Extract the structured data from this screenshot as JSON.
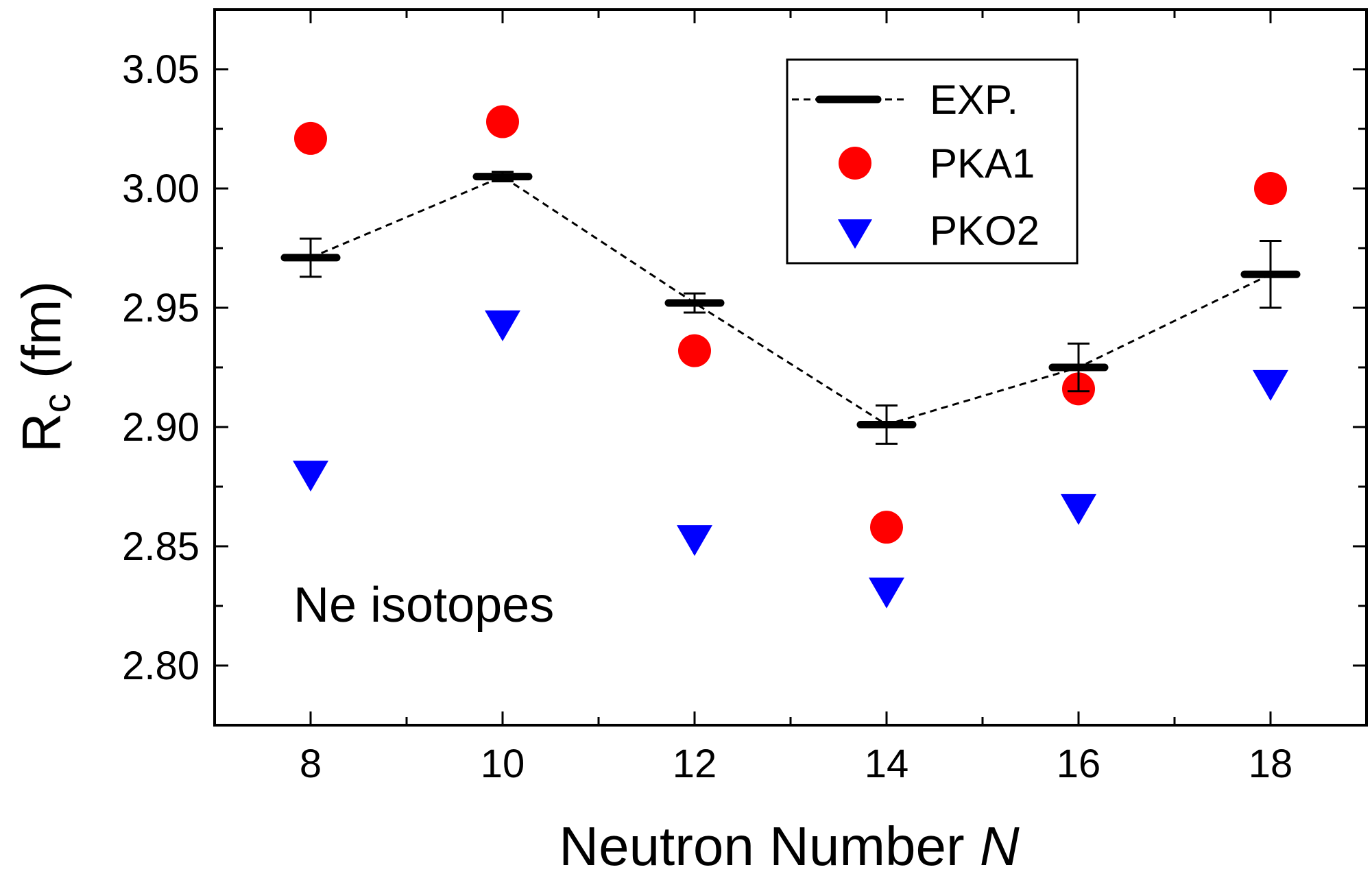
{
  "chart_data": {
    "type": "scatter",
    "title": "",
    "xlabel": "Neutron Number",
    "xlabel_italic_symbol": "N",
    "ylabel_main": "R",
    "ylabel_sub": "c",
    "ylabel_unit": "(fm)",
    "xlim": [
      7,
      19
    ],
    "ylim": [
      2.775,
      3.075
    ],
    "x_ticks": [
      8,
      10,
      12,
      14,
      16,
      18
    ],
    "x_tick_labels": [
      "8",
      "10",
      "12",
      "14",
      "16",
      "18"
    ],
    "y_ticks": [
      2.8,
      2.85,
      2.9,
      2.95,
      3.0,
      3.05
    ],
    "y_tick_labels": [
      "2.80",
      "2.85",
      "2.90",
      "2.95",
      "3.00",
      "3.05"
    ],
    "annotation": "Ne isotopes",
    "legend_position": "top-right",
    "series": [
      {
        "name": "EXP.",
        "marker": "bar",
        "line": "dashed",
        "color": "#000000",
        "points": [
          {
            "x": 8,
            "y": 2.971,
            "err": 0.008
          },
          {
            "x": 10,
            "y": 3.005,
            "err": 0.002
          },
          {
            "x": 12,
            "y": 2.952,
            "err": 0.004
          },
          {
            "x": 14,
            "y": 2.901,
            "err": 0.008
          },
          {
            "x": 16,
            "y": 2.925,
            "err": 0.01
          },
          {
            "x": 18,
            "y": 2.964,
            "err": 0.014
          }
        ]
      },
      {
        "name": "PKA1",
        "marker": "circle",
        "color": "#ff0000",
        "points": [
          {
            "x": 8,
            "y": 3.021
          },
          {
            "x": 10,
            "y": 3.028
          },
          {
            "x": 12,
            "y": 2.932
          },
          {
            "x": 14,
            "y": 2.858
          },
          {
            "x": 16,
            "y": 2.916
          },
          {
            "x": 18,
            "y": 3.0
          }
        ]
      },
      {
        "name": "PKO2",
        "marker": "triangle-down",
        "color": "#0000ff",
        "points": [
          {
            "x": 8,
            "y": 2.881
          },
          {
            "x": 10,
            "y": 2.944
          },
          {
            "x": 12,
            "y": 2.854
          },
          {
            "x": 14,
            "y": 2.832
          },
          {
            "x": 16,
            "y": 2.867
          },
          {
            "x": 18,
            "y": 2.919
          }
        ]
      }
    ]
  }
}
